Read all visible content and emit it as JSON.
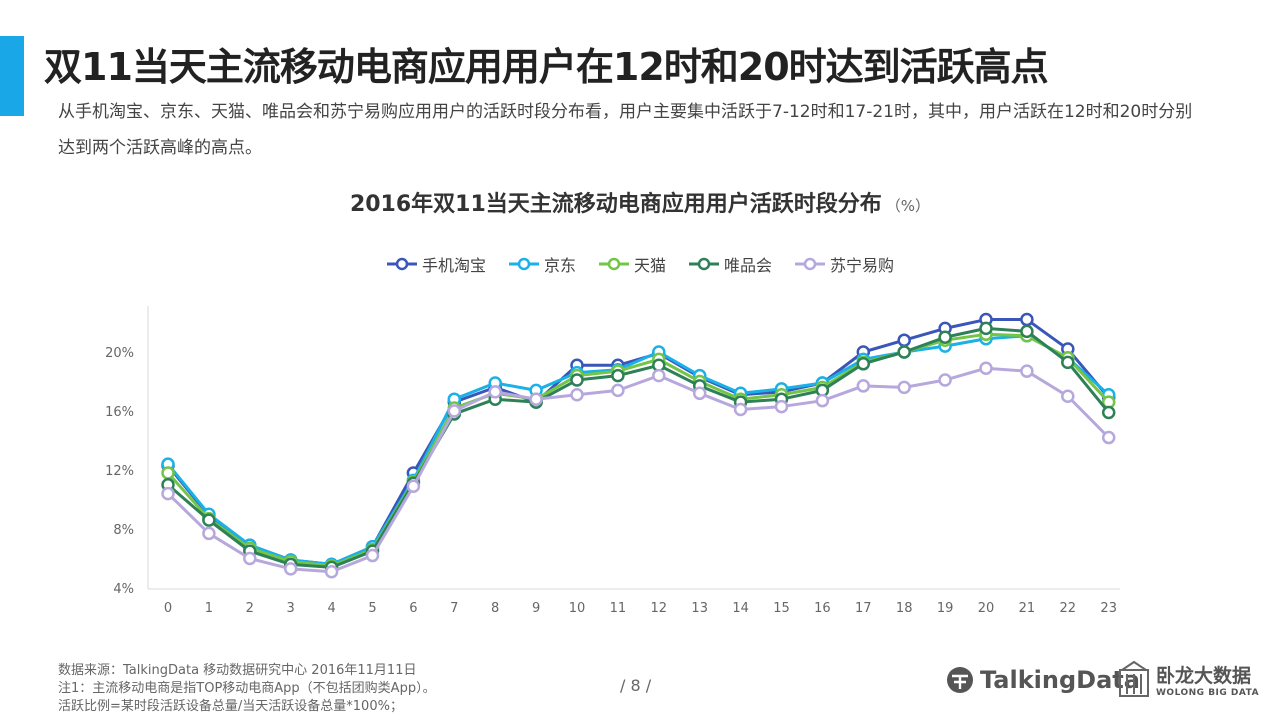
{
  "slide": {
    "title": "双11当天主流移动电商应用用户在12时和20时达到活跃高点",
    "summary": "从手机淘宝、京东、天猫、唯品会和苏宁易购应用用户的活跃时段分布看，用户主要集中活跃于7-12时和17-21时，其中，用户活跃在12时和20时分别达到两个活跃高峰的高点。",
    "page_number": "/ 8 /"
  },
  "footer": {
    "source": "数据来源：TalkingData 移动数据研究中心 2016年11月11日",
    "note1": "注1：主流移动电商是指TOP移动电商App（不包括团购类App）。",
    "note2": "活跃比例=某时段活跃设备总量/当天活跃设备总量*100%；"
  },
  "logos": {
    "talkingdata": "TalkingData",
    "wolong_cn": "卧龙大数据",
    "wolong_en": "WOLONG BIG DATA"
  },
  "chart_data": {
    "type": "line",
    "title": "2016年双11当天主流移动电商应用用户活跃时段分布",
    "unit": "（%）",
    "xlabel": "",
    "ylabel": "",
    "x": [
      0,
      1,
      2,
      3,
      4,
      5,
      6,
      7,
      8,
      9,
      10,
      11,
      12,
      13,
      14,
      15,
      16,
      17,
      18,
      19,
      20,
      21,
      22,
      23
    ],
    "ylim": [
      4,
      22
    ],
    "yticks": [
      4,
      8,
      12,
      16,
      20
    ],
    "ytick_labels": [
      "4%",
      "8%",
      "12%",
      "16%",
      "20%"
    ],
    "grid": false,
    "legend": "top-center",
    "series": [
      {
        "name": "手机淘宝",
        "color": "#3a56b8",
        "values": [
          12.3,
          8.9,
          6.9,
          5.9,
          5.6,
          6.8,
          11.8,
          16.6,
          17.6,
          16.6,
          19.1,
          19.1,
          19.9,
          18.3,
          17.1,
          17.3,
          17.9,
          20.0,
          20.8,
          21.6,
          22.2,
          22.2,
          20.2,
          16.9
        ]
      },
      {
        "name": "京东",
        "color": "#1ab0e8",
        "values": [
          12.4,
          9.0,
          6.9,
          5.9,
          5.6,
          6.8,
          11.3,
          16.8,
          17.9,
          17.4,
          18.6,
          18.8,
          20.0,
          18.4,
          17.2,
          17.5,
          17.9,
          19.5,
          20.0,
          20.4,
          20.9,
          21.1,
          19.6,
          17.1
        ]
      },
      {
        "name": "天猫",
        "color": "#72c545",
        "values": [
          11.8,
          8.7,
          6.7,
          5.8,
          5.5,
          6.6,
          11.2,
          16.2,
          17.2,
          16.8,
          18.4,
          18.7,
          19.5,
          18.0,
          16.8,
          17.1,
          17.6,
          19.3,
          20.0,
          20.8,
          21.2,
          21.1,
          19.6,
          16.6
        ]
      },
      {
        "name": "唯品会",
        "color": "#2e8157",
        "values": [
          11.0,
          8.6,
          6.5,
          5.6,
          5.4,
          6.5,
          11.1,
          15.8,
          16.8,
          16.6,
          18.1,
          18.4,
          19.1,
          17.7,
          16.6,
          16.8,
          17.4,
          19.2,
          20.0,
          21.0,
          21.6,
          21.4,
          19.3,
          15.9
        ]
      },
      {
        "name": "苏宁易购",
        "color": "#b6a8dd",
        "values": [
          10.4,
          7.7,
          6.0,
          5.3,
          5.1,
          6.2,
          10.9,
          16.0,
          17.3,
          16.8,
          17.1,
          17.4,
          18.4,
          17.2,
          16.1,
          16.3,
          16.7,
          17.7,
          17.6,
          18.1,
          18.9,
          18.7,
          17.0,
          14.2
        ]
      }
    ]
  }
}
